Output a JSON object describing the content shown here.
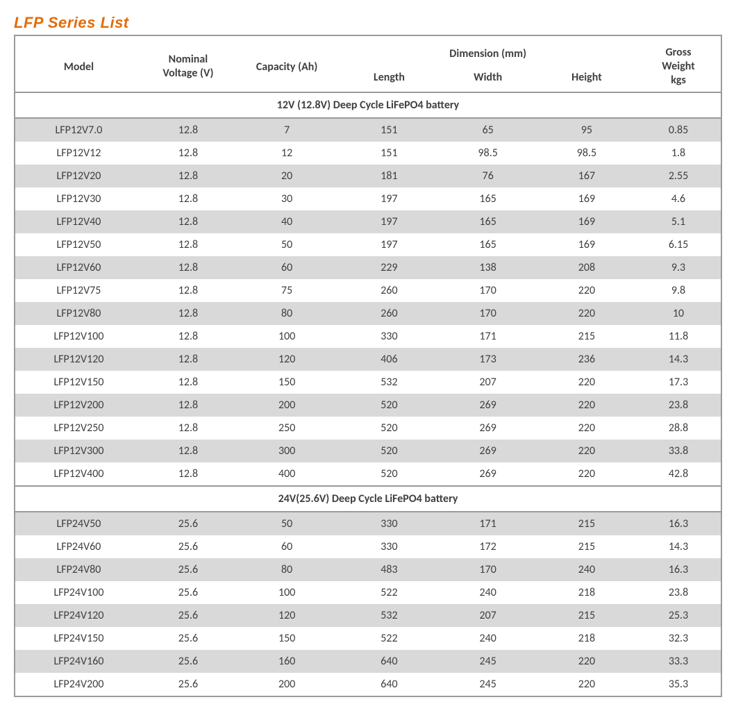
{
  "title": "LFP Series List",
  "colors": {
    "title": "#e36c0a",
    "border": "#9a9a9a",
    "shade": "#d9d9d9",
    "text": "#404040",
    "bg": "#ffffff"
  },
  "headers": {
    "model": "Model",
    "voltage_l1": "Nominal",
    "voltage_l2": "Voltage (V)",
    "capacity": "Capacity (Ah)",
    "dimension": "Dimension (mm)",
    "length": "Length",
    "width": "Width",
    "height": "Height",
    "weight_l1": "Gross",
    "weight_l2": "Weight",
    "weight_l3": "kgs"
  },
  "sections": [
    {
      "title": "12V (12.8V) Deep Cycle LiFePO4 battery",
      "rows": [
        {
          "model": "LFP12V7.0",
          "v": "12.8",
          "ah": "7",
          "l": "151",
          "w": "65",
          "h": "95",
          "kg": "0.85"
        },
        {
          "model": "LFP12V12",
          "v": "12.8",
          "ah": "12",
          "l": "151",
          "w": "98.5",
          "h": "98.5",
          "kg": "1.8"
        },
        {
          "model": "LFP12V20",
          "v": "12.8",
          "ah": "20",
          "l": "181",
          "w": "76",
          "h": "167",
          "kg": "2.55"
        },
        {
          "model": "LFP12V30",
          "v": "12.8",
          "ah": "30",
          "l": "197",
          "w": "165",
          "h": "169",
          "kg": "4.6"
        },
        {
          "model": "LFP12V40",
          "v": "12.8",
          "ah": "40",
          "l": "197",
          "w": "165",
          "h": "169",
          "kg": "5.1"
        },
        {
          "model": "LFP12V50",
          "v": "12.8",
          "ah": "50",
          "l": "197",
          "w": "165",
          "h": "169",
          "kg": "6.15"
        },
        {
          "model": "LFP12V60",
          "v": "12.8",
          "ah": "60",
          "l": "229",
          "w": "138",
          "h": "208",
          "kg": "9.3"
        },
        {
          "model": "LFP12V75",
          "v": "12.8",
          "ah": "75",
          "l": "260",
          "w": "170",
          "h": "220",
          "kg": "9.8"
        },
        {
          "model": "LFP12V80",
          "v": "12.8",
          "ah": "80",
          "l": "260",
          "w": "170",
          "h": "220",
          "kg": "10"
        },
        {
          "model": "LFP12V100",
          "v": "12.8",
          "ah": "100",
          "l": "330",
          "w": "171",
          "h": "215",
          "kg": "11.8"
        },
        {
          "model": "LFP12V120",
          "v": "12.8",
          "ah": "120",
          "l": "406",
          "w": "173",
          "h": "236",
          "kg": "14.3"
        },
        {
          "model": "LFP12V150",
          "v": "12.8",
          "ah": "150",
          "l": "532",
          "w": "207",
          "h": "220",
          "kg": "17.3"
        },
        {
          "model": "LFP12V200",
          "v": "12.8",
          "ah": "200",
          "l": "520",
          "w": "269",
          "h": "220",
          "kg": "23.8"
        },
        {
          "model": "LFP12V250",
          "v": "12.8",
          "ah": "250",
          "l": "520",
          "w": "269",
          "h": "220",
          "kg": "28.8"
        },
        {
          "model": "LFP12V300",
          "v": "12.8",
          "ah": "300",
          "l": "520",
          "w": "269",
          "h": "220",
          "kg": "33.8"
        },
        {
          "model": "LFP12V400",
          "v": "12.8",
          "ah": "400",
          "l": "520",
          "w": "269",
          "h": "220",
          "kg": "42.8"
        }
      ]
    },
    {
      "title": "24V(25.6V) Deep Cycle LiFePO4 battery",
      "rows": [
        {
          "model": "LFP24V50",
          "v": "25.6",
          "ah": "50",
          "l": "330",
          "w": "171",
          "h": "215",
          "kg": "16.3"
        },
        {
          "model": "LFP24V60",
          "v": "25.6",
          "ah": "60",
          "l": "330",
          "w": "172",
          "h": "215",
          "kg": "14.3"
        },
        {
          "model": "LFP24V80",
          "v": "25.6",
          "ah": "80",
          "l": "483",
          "w": "170",
          "h": "240",
          "kg": "16.3"
        },
        {
          "model": "LFP24V100",
          "v": "25.6",
          "ah": "100",
          "l": "522",
          "w": "240",
          "h": "218",
          "kg": "23.8"
        },
        {
          "model": "LFP24V120",
          "v": "25.6",
          "ah": "120",
          "l": "532",
          "w": "207",
          "h": "215",
          "kg": "25.3"
        },
        {
          "model": "LFP24V150",
          "v": "25.6",
          "ah": "150",
          "l": "522",
          "w": "240",
          "h": "218",
          "kg": "32.3"
        },
        {
          "model": "LFP24V160",
          "v": "25.6",
          "ah": "160",
          "l": "640",
          "w": "245",
          "h": "220",
          "kg": "33.3"
        },
        {
          "model": "LFP24V200",
          "v": "25.6",
          "ah": "200",
          "l": "640",
          "w": "245",
          "h": "220",
          "kg": "35.3"
        }
      ]
    }
  ]
}
